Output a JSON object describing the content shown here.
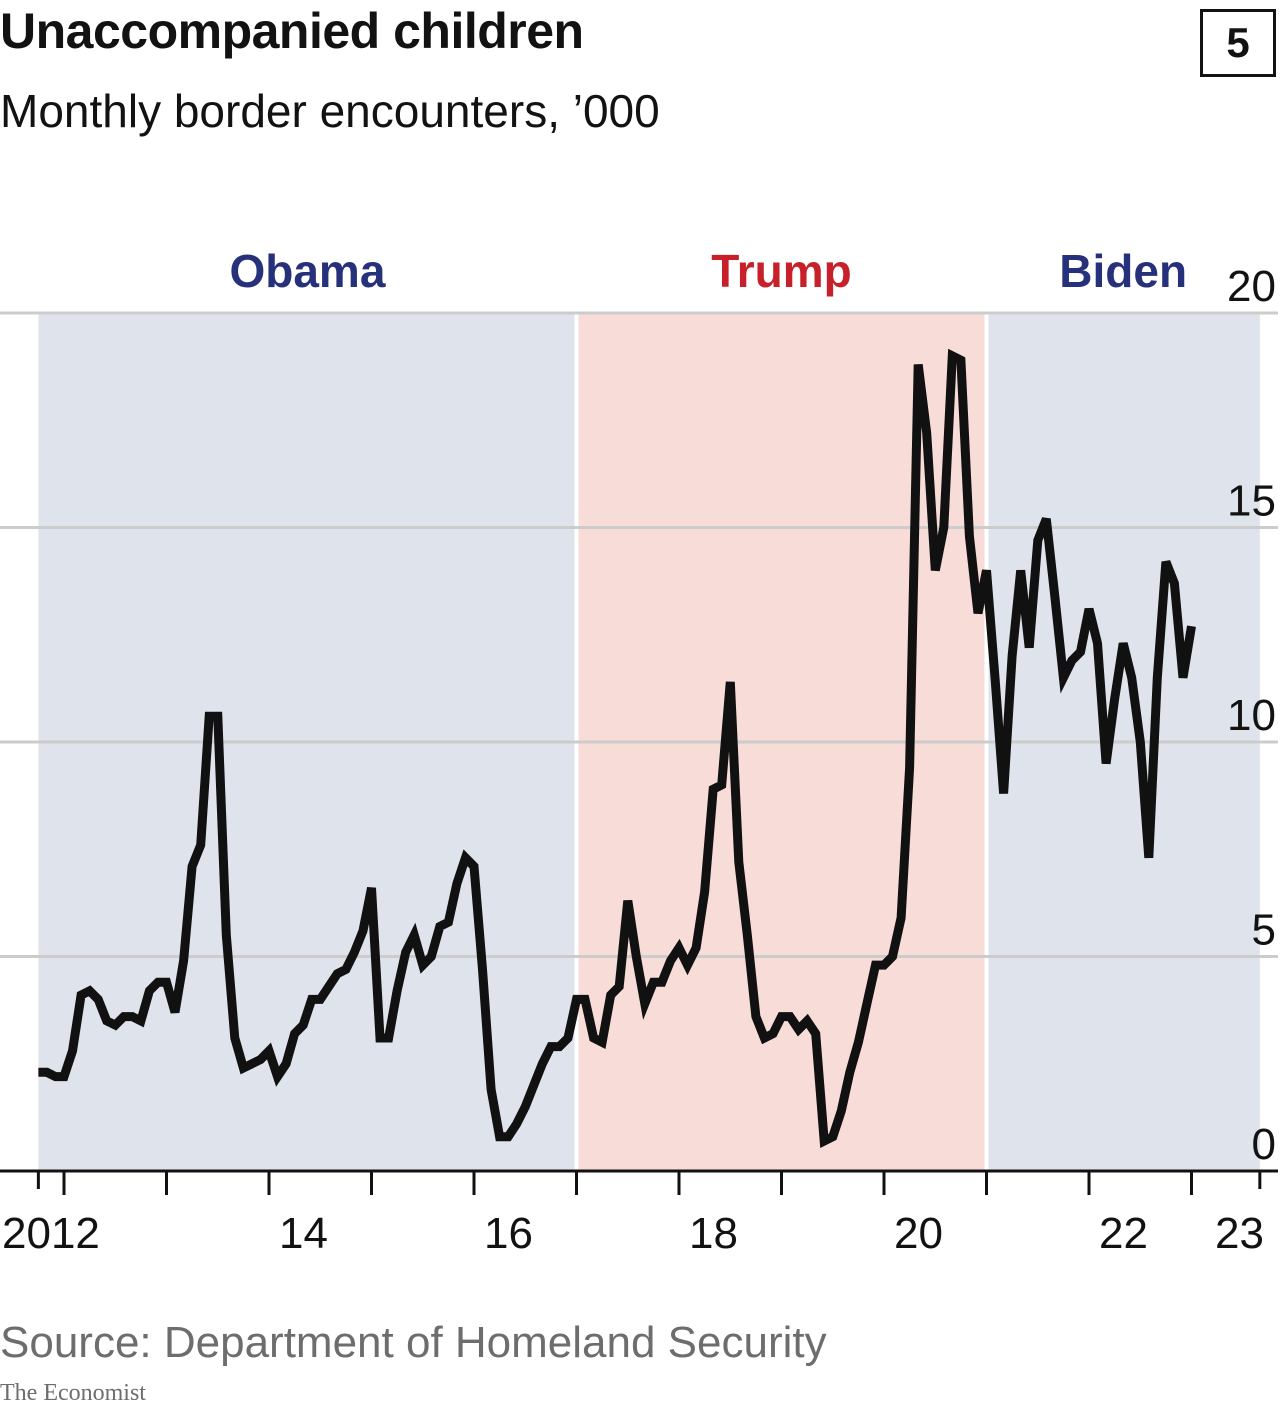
{
  "header": {
    "title": "Unaccompanied children",
    "subtitle": "Monthly border encounters, ’000",
    "chart_number": "5"
  },
  "footer": {
    "source": "Source: Department of Homeland Security",
    "brand": "The Economist"
  },
  "colors": {
    "line": "#111111",
    "obama_band": "#dfe4ec",
    "trump_band": "#f8dcd8",
    "biden_band": "#dfe4ec",
    "obama_label": "#27307a",
    "trump_label": "#c8202a",
    "biden_label": "#27307a",
    "grid": "#cccccc"
  },
  "chart_data": {
    "type": "line",
    "title": "Unaccompanied children",
    "subtitle": "Monthly border encounters, ’000",
    "ylim": [
      0,
      20
    ],
    "y_ticks": [
      0,
      5,
      10,
      15,
      20
    ],
    "y_axis_side": "right",
    "grid": "horizontal",
    "x_ticks": [
      {
        "label": "2012",
        "year": 2012
      },
      {
        "label": "14",
        "year": 2014
      },
      {
        "label": "16",
        "year": 2016
      },
      {
        "label": "18",
        "year": 2018
      },
      {
        "label": "20",
        "year": 2020
      },
      {
        "label": "22",
        "year": 2022
      },
      {
        "label": "23",
        "year": 2023
      }
    ],
    "periods": [
      {
        "label": "Obama",
        "start": "2011-10",
        "end": "2017-01",
        "color_key": "obama"
      },
      {
        "label": "Trump",
        "start": "2017-01",
        "end": "2021-01",
        "color_key": "trump"
      },
      {
        "label": "Biden",
        "start": "2021-01",
        "end": "2023-09",
        "color_key": "biden"
      }
    ],
    "series": [
      {
        "start": "2011-10",
        "frequency": "monthly",
        "values": [
          2.3,
          2.3,
          2.2,
          2.2,
          2.8,
          4.1,
          4.2,
          4.0,
          3.5,
          3.4,
          3.6,
          3.6,
          3.5,
          4.2,
          4.4,
          4.4,
          3.7,
          4.9,
          7.1,
          7.6,
          10.6,
          10.6,
          5.5,
          3.1,
          2.4,
          2.5,
          2.6,
          2.8,
          2.2,
          2.5,
          3.2,
          3.4,
          4.0,
          4.0,
          4.3,
          4.6,
          4.7,
          5.1,
          5.6,
          6.6,
          3.1,
          3.1,
          4.2,
          5.1,
          5.5,
          4.8,
          5.0,
          5.7,
          5.8,
          6.7,
          7.3,
          7.1,
          4.7,
          1.9,
          0.8,
          0.8,
          1.1,
          1.5,
          2.0,
          2.5,
          2.9,
          2.9,
          3.1,
          4.0,
          4.0,
          3.1,
          3.0,
          4.1,
          4.3,
          6.3,
          5.0,
          3.9,
          4.4,
          4.4,
          4.9,
          5.2,
          4.8,
          5.2,
          6.5,
          8.9,
          9.0,
          11.4,
          7.2,
          5.5,
          3.6,
          3.1,
          3.2,
          3.6,
          3.6,
          3.3,
          3.5,
          3.2,
          0.7,
          0.8,
          1.4,
          2.3,
          3.0,
          3.9,
          4.8,
          4.8,
          5.0,
          5.9,
          9.4,
          18.8,
          17.2,
          14.0,
          15.0,
          19.0,
          18.9,
          14.8,
          13.0,
          14.0,
          11.5,
          8.8,
          12.0,
          14.0,
          12.2,
          14.7,
          15.2,
          13.4,
          11.5,
          11.9,
          12.1,
          13.1,
          12.3,
          9.5,
          11.0,
          12.3,
          11.5,
          10.0,
          7.3,
          11.5,
          14.2,
          13.7,
          11.5,
          12.7
        ]
      }
    ]
  }
}
